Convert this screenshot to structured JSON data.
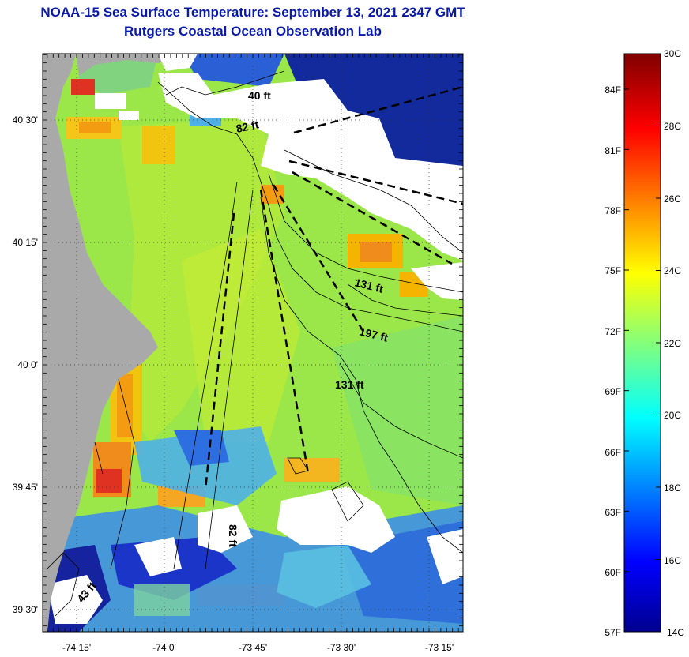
{
  "title": {
    "line1": "NOAA-15 Sea Surface Temperature:  September 13, 2021 2347 GMT",
    "line2": "Rutgers Coastal Ocean Observation Lab"
  },
  "map": {
    "lat_labels": [
      "40 30'",
      "40 15'",
      "40 0'",
      "39 45'",
      "39 30'"
    ],
    "lon_labels": [
      "-74 15'",
      "-74 0'",
      "-73 45'",
      "-73 30'",
      "-73 15'"
    ],
    "depth_labels": [
      "40 ft",
      "82 ft",
      "131 ft",
      "197 ft",
      "131 ft",
      "82 ft",
      "43 ft"
    ]
  },
  "colorbar": {
    "celsius_labels": [
      "30C",
      "28C",
      "26C",
      "24C",
      "22C",
      "20C",
      "18C",
      "16C",
      "14C"
    ],
    "fahrenheit_labels": [
      "84F",
      "81F",
      "78F",
      "75F",
      "72F",
      "69F",
      "66F",
      "63F",
      "60F",
      "57F"
    ],
    "range_c": [
      14,
      30
    ],
    "colormap": "jet",
    "colors": {
      "land": "#a9a9a9",
      "cloud": "#ffffff",
      "title": "#0a1aa8"
    }
  }
}
